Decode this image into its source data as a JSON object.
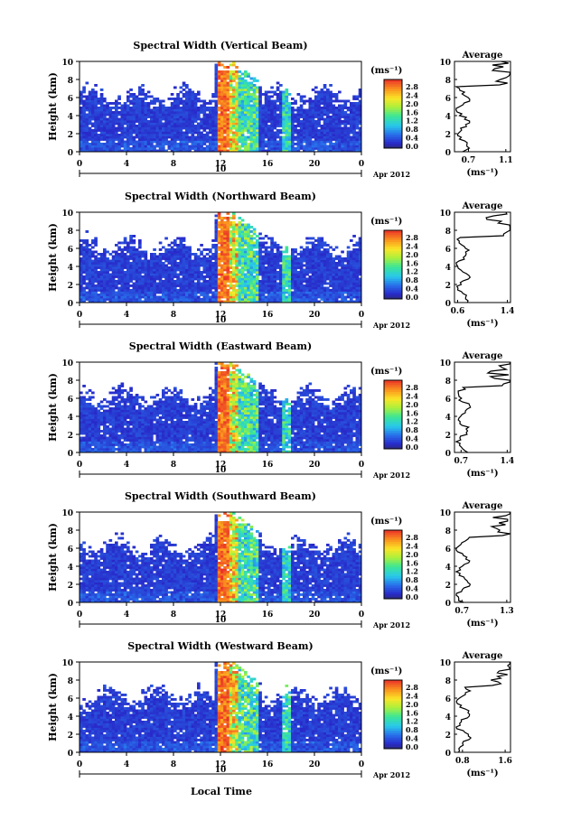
{
  "figure": {
    "xlabel": "Local Time",
    "date_label": "Apr 2012",
    "day_label": "10",
    "ylabel": "Height (km)",
    "unit_label": "(ms⁻¹)",
    "avg_title": "Average",
    "avg_xlabel": "(ms⁻¹)",
    "colorbar_ticks": [
      "2.8",
      "2.4",
      "2.0",
      "1.6",
      "1.2",
      "0.8",
      "0.4",
      "0.0"
    ]
  },
  "chart_data": [
    {
      "type": "heatmap",
      "title": "Spectral Width (Vertical Beam)",
      "x_ticks": [
        "0",
        "4",
        "8",
        "12",
        "16",
        "20",
        "0"
      ],
      "y_ticks": [
        "0",
        "2",
        "4",
        "6",
        "8",
        "10"
      ],
      "xlim": [
        0,
        24
      ],
      "ylim": [
        0,
        10
      ],
      "clim": [
        0.0,
        3.0
      ],
      "avg_profile": {
        "x_ticks": [
          "0.7",
          "1.1"
        ],
        "xlim": [
          0.55,
          1.15
        ]
      }
    },
    {
      "type": "heatmap",
      "title": "Spectral Width (Northward Beam)",
      "x_ticks": [
        "0",
        "4",
        "8",
        "12",
        "16",
        "20",
        "0"
      ],
      "y_ticks": [
        "0",
        "2",
        "4",
        "6",
        "8",
        "10"
      ],
      "xlim": [
        0,
        24
      ],
      "ylim": [
        0,
        10
      ],
      "clim": [
        0.0,
        3.0
      ],
      "avg_profile": {
        "x_ticks": [
          "0.6",
          "1.4"
        ],
        "xlim": [
          0.55,
          1.45
        ]
      }
    },
    {
      "type": "heatmap",
      "title": "Spectral Width (Eastward Beam)",
      "x_ticks": [
        "0",
        "4",
        "8",
        "12",
        "16",
        "20",
        "0"
      ],
      "y_ticks": [
        "0",
        "2",
        "4",
        "6",
        "8",
        "10"
      ],
      "xlim": [
        0,
        24
      ],
      "ylim": [
        0,
        10
      ],
      "clim": [
        0.0,
        3.0
      ],
      "avg_profile": {
        "x_ticks": [
          "0.7",
          "1.4"
        ],
        "xlim": [
          0.6,
          1.45
        ]
      }
    },
    {
      "type": "heatmap",
      "title": "Spectral Width (Southward Beam)",
      "x_ticks": [
        "0",
        "4",
        "8",
        "12",
        "16",
        "20",
        "0"
      ],
      "y_ticks": [
        "0",
        "2",
        "4",
        "6",
        "8",
        "10"
      ],
      "xlim": [
        0,
        24
      ],
      "ylim": [
        0,
        10
      ],
      "clim": [
        0.0,
        3.0
      ],
      "avg_profile": {
        "x_ticks": [
          "0.7",
          "1.3"
        ],
        "xlim": [
          0.6,
          1.35
        ]
      }
    },
    {
      "type": "heatmap",
      "title": "Spectral Width (Westward Beam)",
      "x_ticks": [
        "0",
        "4",
        "8",
        "12",
        "16",
        "20",
        "0"
      ],
      "y_ticks": [
        "0",
        "2",
        "4",
        "6",
        "8",
        "10"
      ],
      "xlim": [
        0,
        24
      ],
      "ylim": [
        0,
        10
      ],
      "clim": [
        0.0,
        3.0
      ],
      "avg_profile": {
        "x_ticks": [
          "0.8",
          "1.6"
        ],
        "xlim": [
          0.65,
          1.7
        ]
      }
    }
  ]
}
